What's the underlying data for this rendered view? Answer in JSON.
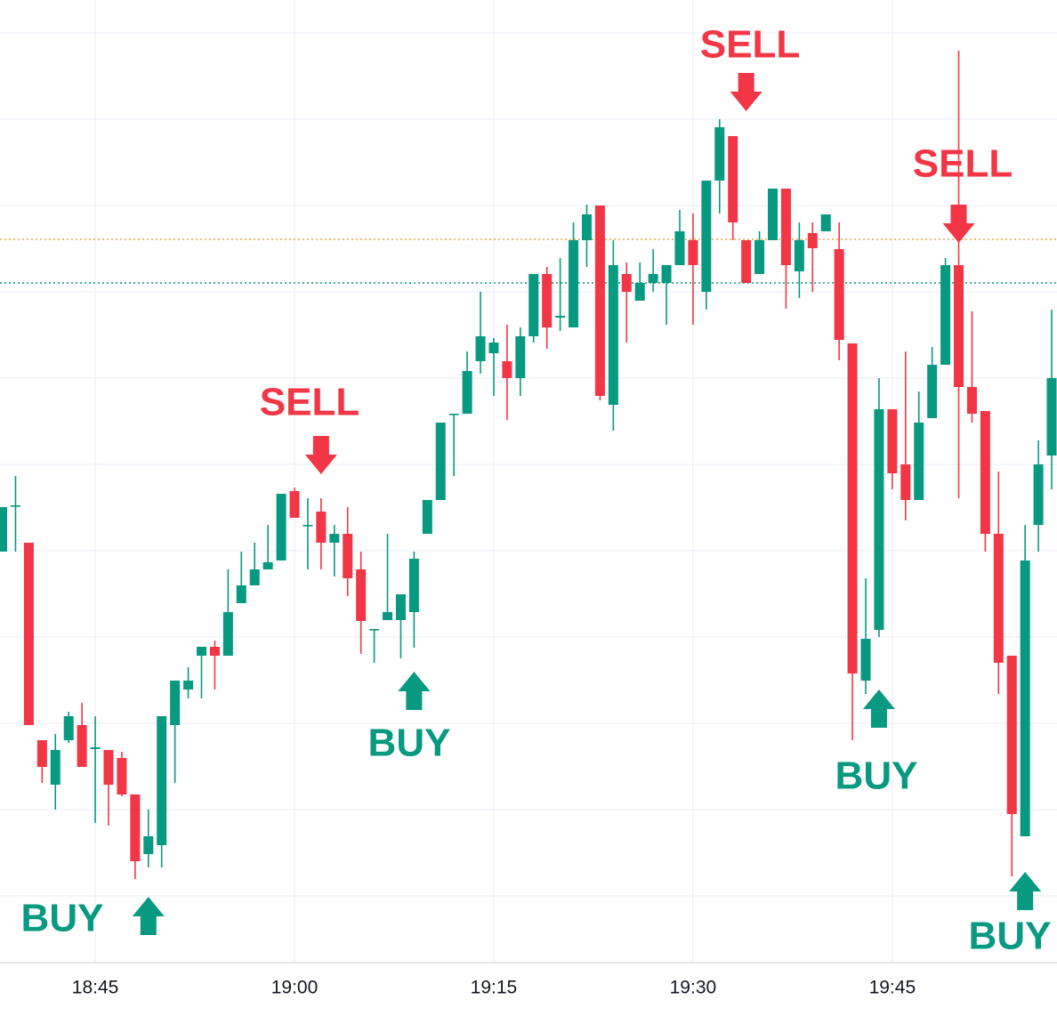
{
  "chart_data": {
    "type": "candlestick",
    "up_color": "#089981",
    "down_color": "#f23645",
    "xlim": [
      37.83,
      117.4
    ],
    "xticks": [
      {
        "value": 45,
        "label": "18:45"
      },
      {
        "value": 60,
        "label": "19:00"
      },
      {
        "value": 75,
        "label": "19:15"
      },
      {
        "value": 90,
        "label": "19:30"
      },
      {
        "value": 105,
        "label": "19:45"
      }
    ],
    "ylim": [
      0,
      1082
    ],
    "ygrid": [
      75,
      172,
      269,
      366,
      463,
      560,
      657,
      754,
      851,
      948,
      1045
    ],
    "x": [
      38,
      39,
      40,
      41,
      42,
      43,
      44,
      45,
      46,
      47,
      48,
      49,
      50,
      51,
      52,
      53,
      54,
      55,
      56,
      57,
      58,
      59,
      60,
      61,
      62,
      63,
      64,
      65,
      66,
      67,
      68,
      69,
      70,
      71,
      72,
      73,
      74,
      75,
      76,
      77,
      78,
      79,
      80,
      81,
      82,
      83,
      84,
      85,
      86,
      87,
      88,
      89,
      90,
      91,
      92,
      93,
      94,
      95,
      96,
      97,
      98,
      99,
      100,
      101,
      102,
      103,
      104,
      105,
      106,
      107,
      108,
      109,
      110,
      111,
      112,
      113,
      114,
      115,
      116,
      117
    ],
    "open": [
      462,
      513,
      472,
      250,
      200,
      250,
      267,
      240,
      239,
      230,
      189,
      122,
      132,
      267,
      307,
      345,
      355,
      345,
      404,
      424,
      442,
      452,
      530,
      491,
      507,
      472,
      482,
      442,
      374,
      385,
      385,
      394,
      482,
      520,
      616,
      617,
      676,
      685,
      676,
      657,
      704,
      774,
      725,
      714,
      812,
      851,
      627,
      774,
      744,
      764,
      764,
      784,
      812,
      754,
      879,
      929,
      812,
      774,
      812,
      870,
      777,
      820,
      822,
      802,
      696,
      317,
      374,
      622,
      560,
      520,
      612,
      672,
      784,
      647,
      620,
      482,
      345,
      142,
      492,
      570
    ],
    "high": [
      512,
      547,
      472,
      250,
      257,
      282,
      292,
      277,
      239,
      237,
      189,
      172,
      277,
      317,
      332,
      355,
      362,
      442,
      462,
      472,
      492,
      527,
      534,
      522,
      522,
      492,
      512,
      462,
      375,
      482,
      414,
      462,
      520,
      607,
      617,
      687,
      754,
      702,
      717,
      714,
      774,
      782,
      792,
      832,
      852,
      851,
      812,
      787,
      787,
      802,
      784,
      846,
      842,
      879,
      948,
      929,
      812,
      822,
      870,
      870,
      832,
      832,
      841,
      832,
      696,
      432,
      657,
      622,
      687,
      642,
      692,
      792,
      1025,
      732,
      620,
      552,
      345,
      492,
      587,
      734
    ],
    "low": [
      462,
      462,
      267,
      202,
      172,
      247,
      220,
      157,
      154,
      187,
      94,
      107,
      107,
      202,
      297,
      297,
      307,
      345,
      404,
      424,
      442,
      452,
      500,
      442,
      442,
      434,
      412,
      347,
      337,
      385,
      342,
      354,
      482,
      520,
      547,
      617,
      662,
      637,
      610,
      637,
      697,
      690,
      710,
      714,
      782,
      632,
      598,
      697,
      744,
      754,
      717,
      784,
      717,
      734,
      842,
      812,
      764,
      774,
      812,
      735,
      747,
      754,
      822,
      677,
      250,
      302,
      366,
      532,
      497,
      520,
      612,
      672,
      522,
      607,
      462,
      302,
      97,
      142,
      462,
      532
    ],
    "close": [
      512,
      514,
      267,
      220,
      239,
      277,
      220,
      242,
      200,
      189,
      114,
      142,
      277,
      317,
      317,
      355,
      345,
      394,
      424,
      442,
      450,
      527,
      500,
      492,
      472,
      482,
      432,
      384,
      375,
      394,
      414,
      454,
      520,
      607,
      617,
      665,
      704,
      697,
      657,
      704,
      774,
      714,
      727,
      812,
      841,
      637,
      784,
      754,
      764,
      774,
      784,
      822,
      784,
      879,
      939,
      832,
      764,
      812,
      870,
      784,
      812,
      803,
      841,
      700,
      325,
      364,
      622,
      550,
      520,
      607,
      672,
      784,
      647,
      617,
      482,
      337,
      167,
      452,
      560,
      657
    ],
    "reference_lines": [
      {
        "value": 813,
        "color": "#f0a040"
      },
      {
        "value": 764,
        "color": "#089981"
      }
    ],
    "signals": [
      {
        "label": "BUY",
        "x": 49,
        "color": "#089981"
      },
      {
        "label": "SELL",
        "x": 62,
        "color": "#f23645"
      },
      {
        "label": "BUY",
        "x": 69,
        "color": "#089981"
      },
      {
        "label": "SELL",
        "x": 94,
        "color": "#f23645"
      },
      {
        "label": "BUY",
        "x": 104,
        "color": "#089981"
      },
      {
        "label": "SELL",
        "x": 110,
        "color": "#f23645"
      },
      {
        "label": "BUY",
        "x": 115,
        "color": "#089981"
      }
    ]
  }
}
